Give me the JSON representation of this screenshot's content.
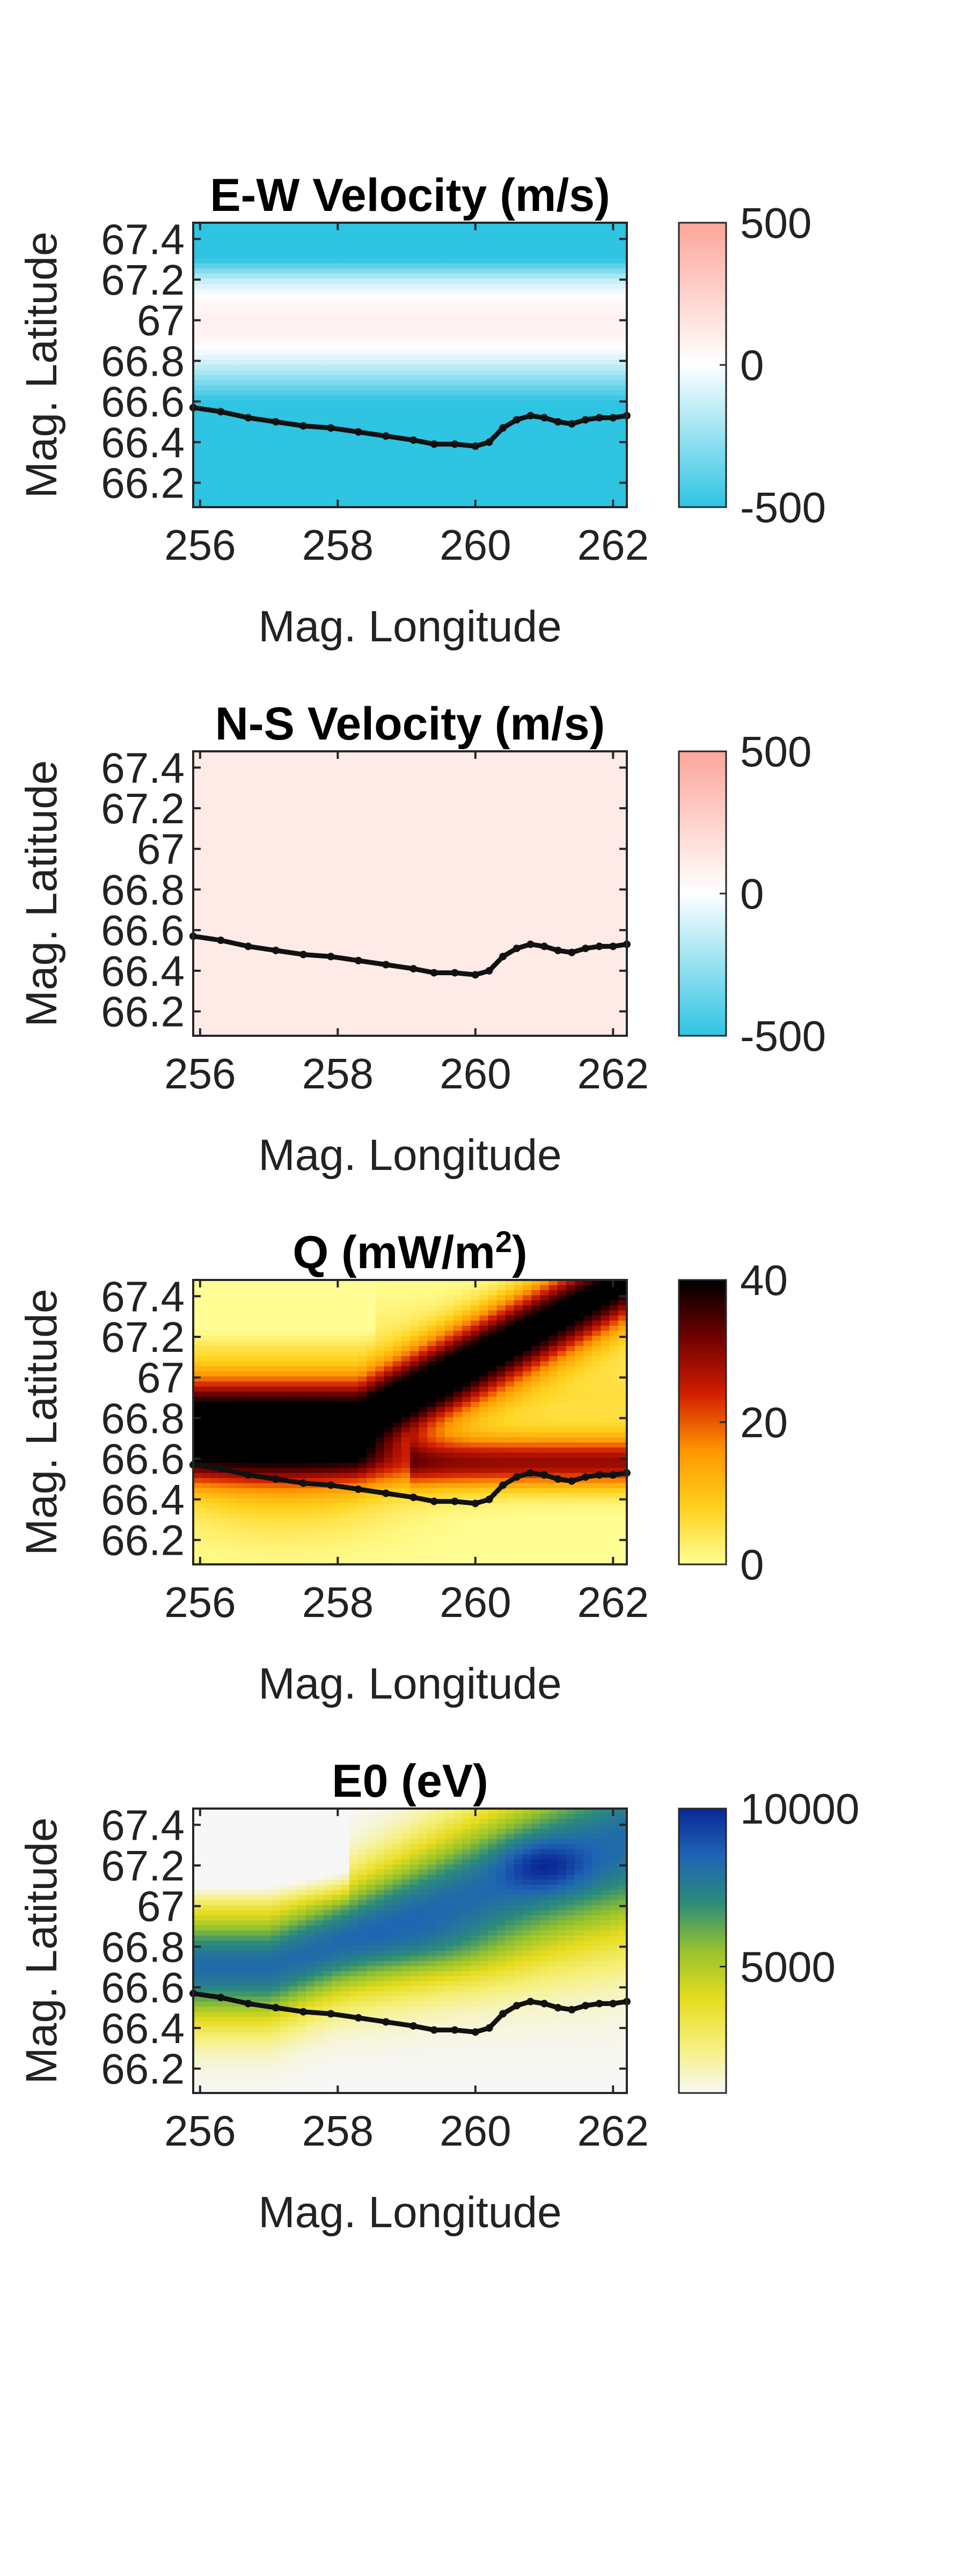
{
  "figure": {
    "panel_count": 4
  },
  "boundary_line": {
    "lon": [
      255.9,
      256.3,
      256.7,
      257.1,
      257.5,
      257.9,
      258.3,
      258.7,
      259.1,
      259.4,
      259.7,
      260.0,
      260.2,
      260.4,
      260.6,
      260.8,
      261.0,
      261.2,
      261.4,
      261.6,
      261.8,
      262.0,
      262.2
    ],
    "lat": [
      66.57,
      66.55,
      66.52,
      66.5,
      66.48,
      66.47,
      66.45,
      66.43,
      66.41,
      66.39,
      66.39,
      66.38,
      66.4,
      66.47,
      66.51,
      66.53,
      66.52,
      66.5,
      66.49,
      66.51,
      66.52,
      66.52,
      66.53
    ]
  },
  "chart_data": [
    {
      "type": "heatmap",
      "title_main": "E-W Velocity (m/s)",
      "title_sup": "",
      "title_tail": "",
      "xlabel": "Mag. Longitude",
      "ylabel": "Mag. Latitude",
      "xlim": [
        255.9,
        262.2
      ],
      "ylim": [
        66.08,
        67.48
      ],
      "xticks": [
        256,
        258,
        260,
        262
      ],
      "yticks": [
        66.2,
        66.4,
        66.6,
        66.8,
        67,
        67.2,
        67.4
      ],
      "colormap": "diverging-cyan-white-salmon",
      "colors": [
        "#2ec4e2",
        "#ffffff",
        "#fca69a"
      ],
      "clim": [
        -500,
        500
      ],
      "colorbar_ticks": [
        -500,
        0,
        500
      ],
      "field_profile": {
        "lat": [
          66.08,
          66.6,
          66.7,
          66.8,
          66.9,
          67.0,
          67.1,
          67.2,
          67.3,
          67.48
        ],
        "value": [
          -500,
          -500,
          -300,
          -100,
          50,
          80,
          30,
          -150,
          -500,
          -500
        ]
      },
      "overlay": "boundary_line"
    },
    {
      "type": "heatmap",
      "title_main": "N-S Velocity (m/s)",
      "title_sup": "",
      "title_tail": "",
      "xlabel": "Mag. Longitude",
      "ylabel": "Mag. Latitude",
      "xlim": [
        255.9,
        262.2
      ],
      "ylim": [
        66.08,
        67.48
      ],
      "xticks": [
        256,
        258,
        260,
        262
      ],
      "yticks": [
        66.2,
        66.4,
        66.6,
        66.8,
        67,
        67.2,
        67.4
      ],
      "colormap": "diverging-cyan-white-salmon",
      "colors": [
        "#2ec4e2",
        "#ffffff",
        "#fca69a"
      ],
      "clim": [
        -500,
        500
      ],
      "colorbar_ticks": [
        -500,
        0,
        500
      ],
      "field_profile": {
        "lat": [
          66.08,
          67.48
        ],
        "value": [
          120,
          120
        ]
      },
      "overlay": "boundary_line"
    },
    {
      "type": "heatmap",
      "title_main": "Q (mW/m",
      "title_sup": "2",
      "title_tail": ")",
      "xlabel": "Mag. Longitude",
      "ylabel": "Mag. Latitude",
      "xlim": [
        255.9,
        262.2
      ],
      "ylim": [
        66.08,
        67.48
      ],
      "xticks": [
        256,
        258,
        260,
        262
      ],
      "yticks": [
        66.2,
        66.4,
        66.6,
        66.8,
        67,
        67.2,
        67.4
      ],
      "colormap": "hot-inverted",
      "colors": [
        "#ffff96",
        "#ffd21e",
        "#ff9600",
        "#d21e00",
        "#6e0000",
        "#000000"
      ],
      "clim": [
        0,
        40
      ],
      "colorbar_ticks": [
        0,
        20,
        40
      ],
      "overlay": "boundary_line"
    },
    {
      "type": "heatmap",
      "title_main": "E0 (eV)",
      "title_sup": "",
      "title_tail": "",
      "xlabel": "Mag. Longitude",
      "ylabel": "Mag. Latitude",
      "xlim": [
        255.9,
        262.2
      ],
      "ylim": [
        66.08,
        67.48
      ],
      "xticks": [
        256,
        258,
        260,
        262
      ],
      "yticks": [
        66.2,
        66.4,
        66.6,
        66.8,
        67,
        67.2,
        67.4
      ],
      "colormap": "parula-like",
      "colors": [
        "#f7f7f7",
        "#f5f07a",
        "#e6dc1e",
        "#96c32d",
        "#2d8c78",
        "#1e64b4",
        "#0a2896"
      ],
      "clim": [
        1000,
        10000
      ],
      "colorbar_ticks": [
        5000,
        10000
      ],
      "overlay": "boundary_line"
    }
  ]
}
